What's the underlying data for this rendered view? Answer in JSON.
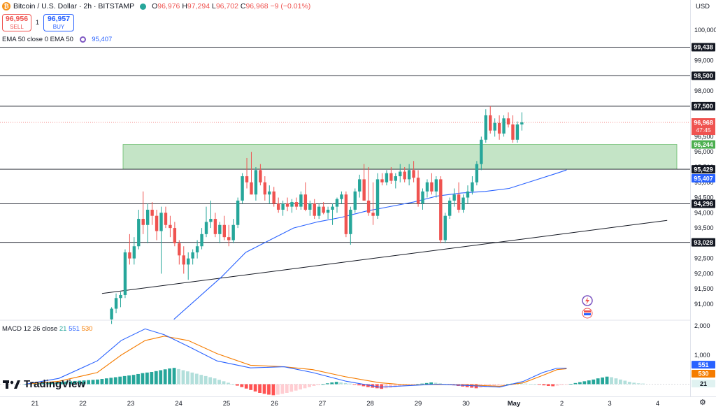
{
  "header": {
    "symbol": "Bitcoin / U.S. Dollar · 2h · BITSTAMP",
    "open": "96,976",
    "high": "97,294",
    "low": "96,702",
    "close": "96,968",
    "change": "−9 (−0.01%)"
  },
  "trade": {
    "sell_price": "96,956",
    "sell_label": "SELL",
    "spread": "1",
    "buy_price": "96,957",
    "buy_label": "BUY"
  },
  "indicators": {
    "ema_label": "EMA 50 close 0 EMA 50",
    "ema_value": "95,407",
    "macd_label": "MACD 12 26 close",
    "macd_hist": "21",
    "macd_line": "551",
    "macd_signal": "530"
  },
  "currency": "USD",
  "brand": "TradingView",
  "colors": {
    "up": "#26a69a",
    "down": "#ef5350",
    "ema": "#2962ff",
    "signal": "#f57c00",
    "zone": "#a5d6a7"
  },
  "chart_data": {
    "type": "candlestick",
    "y_axis": {
      "range": [
        90500,
        100500
      ],
      "ticks": [
        "100,000",
        "99,500",
        "99,000",
        "98,500",
        "98,000",
        "97,500",
        "97,000",
        "96,500",
        "96,000",
        "95,500",
        "95,000",
        "94,500",
        "94,000",
        "93,500",
        "93,000",
        "92,500",
        "92,000",
        "91,500",
        "91,000"
      ]
    },
    "x_axis": {
      "labels": [
        "21",
        "22",
        "23",
        "24",
        "25",
        "26",
        "27",
        "28",
        "29",
        "30",
        "May",
        "2",
        "3",
        "4"
      ]
    },
    "horizontal_levels": [
      {
        "value": 99438,
        "label": "99,438"
      },
      {
        "value": 98500,
        "label": "98,500"
      },
      {
        "value": 97500,
        "label": "97,500"
      },
      {
        "value": 94296,
        "label": "94,296"
      },
      {
        "value": 93028,
        "label": "93,028"
      }
    ],
    "zone": {
      "from": 95429,
      "to": 96244,
      "label_top": "96,244",
      "label_bottom": "95,429"
    },
    "last_price": {
      "value": 96968,
      "label": "96,968",
      "countdown": "47:45"
    },
    "ema_price_label": "95,407",
    "trendline": {
      "from": {
        "day": 22.4,
        "price": 91350
      },
      "to": {
        "day": 34.2,
        "price": 93750
      }
    },
    "candles_start_day": 22.6,
    "candle_step_days": 0.0833,
    "candles_ohlc": [
      [
        90500,
        90900,
        90350,
        90850
      ],
      [
        90850,
        91350,
        90700,
        91200
      ],
      [
        91200,
        91400,
        90900,
        91300
      ],
      [
        91300,
        92800,
        91200,
        92700
      ],
      [
        92700,
        93300,
        92300,
        92500
      ],
      [
        92500,
        93200,
        92300,
        92900
      ],
      [
        92900,
        94100,
        92800,
        93800
      ],
      [
        93800,
        94700,
        93300,
        93600
      ],
      [
        93600,
        94300,
        93000,
        94100
      ],
      [
        94100,
        94350,
        93600,
        93900
      ],
      [
        93900,
        94100,
        93100,
        93400
      ],
      [
        93400,
        94200,
        92000,
        94000
      ],
      [
        94000,
        94200,
        93500,
        93600
      ],
      [
        93600,
        93900,
        93200,
        93500
      ],
      [
        93500,
        93700,
        92900,
        93000
      ],
      [
        93000,
        93100,
        92300,
        92600
      ],
      [
        92600,
        92900,
        92000,
        92300
      ],
      [
        92300,
        92700,
        91800,
        92500
      ],
      [
        92500,
        92800,
        92300,
        92700
      ],
      [
        92700,
        93100,
        92500,
        92900
      ],
      [
        92900,
        93500,
        92800,
        93300
      ],
      [
        93300,
        94200,
        93200,
        93700
      ],
      [
        93700,
        94400,
        93500,
        93800
      ],
      [
        93800,
        94000,
        93200,
        93300
      ],
      [
        93300,
        93700,
        93000,
        93600
      ],
      [
        93600,
        93900,
        93100,
        93200
      ],
      [
        93200,
        93600,
        92900,
        93100
      ],
      [
        93100,
        93800,
        93000,
        93600
      ],
      [
        93600,
        94500,
        93500,
        94400
      ],
      [
        94400,
        95300,
        94300,
        95200
      ],
      [
        95200,
        95800,
        94800,
        95000
      ],
      [
        95000,
        96000,
        94600,
        94600
      ],
      [
        94600,
        95500,
        94400,
        95400
      ],
      [
        95400,
        95600,
        94900,
        95000
      ],
      [
        95000,
        95200,
        94400,
        94600
      ],
      [
        94600,
        94900,
        94300,
        94700
      ],
      [
        94700,
        94850,
        94200,
        94300
      ],
      [
        94300,
        94500,
        94000,
        94100
      ],
      [
        94100,
        94400,
        93900,
        94300
      ],
      [
        94300,
        94500,
        94050,
        94200
      ],
      [
        94200,
        94450,
        94000,
        94350
      ],
      [
        94350,
        94500,
        94100,
        94200
      ],
      [
        94200,
        94700,
        94100,
        94600
      ],
      [
        94600,
        95000,
        94050,
        94100
      ],
      [
        94100,
        94400,
        93900,
        94300
      ],
      [
        94300,
        94450,
        93800,
        93900
      ],
      [
        93900,
        94300,
        93800,
        94200
      ],
      [
        94200,
        94350,
        93950,
        94000
      ],
      [
        94000,
        94200,
        93800,
        94100
      ],
      [
        94100,
        94300,
        93600,
        94200
      ],
      [
        94200,
        94500,
        94000,
        94450
      ],
      [
        94450,
        94700,
        94300,
        94600
      ],
      [
        94600,
        94700,
        93200,
        93300
      ],
      [
        93300,
        94200,
        92950,
        94100
      ],
      [
        94100,
        94800,
        94000,
        94700
      ],
      [
        94700,
        95250,
        94500,
        95100
      ],
      [
        95100,
        95600,
        94400,
        94400
      ],
      [
        94400,
        95500,
        93900,
        94000
      ],
      [
        94000,
        95000,
        93600,
        93900
      ],
      [
        93900,
        95300,
        93800,
        95100
      ],
      [
        95100,
        95300,
        94900,
        95000
      ],
      [
        95000,
        95400,
        94900,
        95300
      ],
      [
        95300,
        95500,
        94950,
        95050
      ],
      [
        95050,
        95300,
        94800,
        95200
      ],
      [
        95200,
        95600,
        95000,
        95350
      ],
      [
        95350,
        95500,
        95000,
        95100
      ],
      [
        95100,
        95600,
        94900,
        95400
      ],
      [
        95400,
        95700,
        95000,
        95150
      ],
      [
        95150,
        95400,
        94200,
        94300
      ],
      [
        94300,
        94800,
        94100,
        94700
      ],
      [
        94700,
        95100,
        94500,
        95000
      ],
      [
        95000,
        95300,
        94600,
        94700
      ],
      [
        94700,
        95200,
        94500,
        95100
      ],
      [
        95100,
        95200,
        93000,
        93100
      ],
      [
        93100,
        94000,
        93000,
        93900
      ],
      [
        93900,
        94500,
        93800,
        94400
      ],
      [
        94400,
        94800,
        94200,
        94600
      ],
      [
        94600,
        95000,
        94000,
        94100
      ],
      [
        94100,
        94600,
        94000,
        94500
      ],
      [
        94500,
        94900,
        94300,
        94700
      ],
      [
        94700,
        95200,
        94600,
        95000
      ],
      [
        95000,
        95700,
        94900,
        95600
      ],
      [
        95600,
        96500,
        95400,
        96400
      ],
      [
        96400,
        97400,
        96300,
        97200
      ],
      [
        97200,
        97500,
        96600,
        96700
      ],
      [
        96700,
        97100,
        96500,
        96950
      ],
      [
        96950,
        97200,
        96400,
        96600
      ],
      [
        96600,
        97200,
        96500,
        97100
      ],
      [
        97100,
        97300,
        96800,
        96900
      ],
      [
        96900,
        97200,
        96300,
        96400
      ],
      [
        96400,
        97000,
        96300,
        96900
      ],
      [
        96900,
        97300,
        96700,
        96968
      ]
    ],
    "ema50": [
      [
        23.9,
        90500
      ],
      [
        24.4,
        91200
      ],
      [
        24.9,
        91900
      ],
      [
        25.4,
        92700
      ],
      [
        25.9,
        93100
      ],
      [
        26.4,
        93500
      ],
      [
        26.9,
        93700
      ],
      [
        27.4,
        93850
      ],
      [
        27.9,
        94050
      ],
      [
        28.4,
        94200
      ],
      [
        28.9,
        94350
      ],
      [
        29.4,
        94550
      ],
      [
        29.9,
        94650
      ],
      [
        30.4,
        94700
      ],
      [
        30.9,
        94800
      ],
      [
        31.4,
        95050
      ],
      [
        31.9,
        95300
      ],
      [
        32.1,
        95407
      ]
    ],
    "macd": {
      "y_ticks": [
        "2,000",
        "1,000"
      ],
      "y_range": [
        -300,
        2150
      ],
      "labels": {
        "macd": "551",
        "signal": "530",
        "hist": "21"
      },
      "macd_line": [
        [
          20.8,
          0
        ],
        [
          21.5,
          200
        ],
        [
          22.3,
          800
        ],
        [
          22.8,
          1500
        ],
        [
          23.3,
          1900
        ],
        [
          23.7,
          1700
        ],
        [
          24.2,
          1300
        ],
        [
          24.8,
          800
        ],
        [
          25.5,
          560
        ],
        [
          26.2,
          600
        ],
        [
          26.8,
          400
        ],
        [
          27.5,
          100
        ],
        [
          28.2,
          -100
        ],
        [
          28.8,
          -50
        ],
        [
          29.4,
          0
        ],
        [
          30.1,
          -50
        ],
        [
          30.7,
          -100
        ],
        [
          31.2,
          100
        ],
        [
          31.6,
          400
        ],
        [
          31.9,
          550
        ],
        [
          32.1,
          551
        ]
      ],
      "signal_line": [
        [
          20.8,
          0
        ],
        [
          21.5,
          100
        ],
        [
          22.3,
          400
        ],
        [
          22.8,
          1000
        ],
        [
          23.3,
          1500
        ],
        [
          23.7,
          1650
        ],
        [
          24.2,
          1500
        ],
        [
          24.8,
          1050
        ],
        [
          25.5,
          650
        ],
        [
          26.2,
          600
        ],
        [
          26.8,
          500
        ],
        [
          27.5,
          250
        ],
        [
          28.2,
          50
        ],
        [
          28.8,
          -30
        ],
        [
          29.4,
          -10
        ],
        [
          30.1,
          -30
        ],
        [
          30.7,
          -70
        ],
        [
          31.2,
          50
        ],
        [
          31.6,
          300
        ],
        [
          31.9,
          500
        ],
        [
          32.1,
          530
        ]
      ],
      "hist_start_day": 20.8,
      "hist_step_days": 0.0833,
      "hist": [
        0,
        10,
        20,
        30,
        40,
        50,
        60,
        70,
        80,
        90,
        100,
        110,
        120,
        130,
        140,
        150,
        160,
        180,
        200,
        220,
        240,
        260,
        280,
        300,
        320,
        350,
        380,
        400,
        420,
        450,
        480,
        510,
        540,
        560,
        520,
        480,
        440,
        400,
        360,
        320,
        280,
        240,
        200,
        150,
        100,
        50,
        0,
        -50,
        -100,
        -150,
        -200,
        -250,
        -300,
        -330,
        -360,
        -380,
        -360,
        -330,
        -300,
        -260,
        -220,
        -180,
        -140,
        -100,
        -60,
        -30,
        0,
        30,
        60,
        80,
        60,
        40,
        20,
        -10,
        -40,
        -70,
        -100,
        -120,
        -140,
        -160,
        -140,
        -120,
        -100,
        -80,
        -60,
        -40,
        -20,
        0,
        20,
        40,
        60,
        50,
        30,
        10,
        -20,
        -40,
        -60,
        -80,
        -100,
        -120,
        -140,
        -120,
        -100,
        -80,
        -60,
        -40,
        -20,
        0,
        20,
        40,
        30,
        20,
        10,
        0,
        -20,
        -40,
        -60,
        -70,
        -50,
        -30,
        -10,
        10,
        40,
        70,
        100,
        130,
        160,
        200,
        230,
        260,
        240,
        200,
        160,
        120,
        80,
        50,
        30,
        21
      ]
    }
  }
}
